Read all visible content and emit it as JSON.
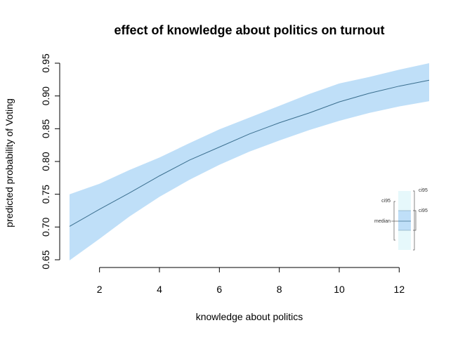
{
  "chart_data": {
    "type": "area",
    "title": "effect of knowledge about politics on turnout",
    "xlabel": "knowledge about politics",
    "ylabel": "predicted probability of Voting",
    "xlim": [
      1,
      13
    ],
    "ylim": [
      0.65,
      0.95
    ],
    "x_ticks": [
      "2",
      "4",
      "6",
      "8",
      "10",
      "12"
    ],
    "y_ticks": [
      "0.65",
      "0.70",
      "0.75",
      "0.80",
      "0.85",
      "0.90",
      "0.95"
    ],
    "x": [
      1,
      2,
      3,
      4,
      5,
      6,
      7,
      8,
      9,
      10,
      11,
      12,
      13
    ],
    "median": [
      0.701,
      0.727,
      0.752,
      0.778,
      0.802,
      0.822,
      0.842,
      0.859,
      0.874,
      0.891,
      0.904,
      0.915,
      0.924
    ],
    "ci95_lower": [
      0.649,
      0.682,
      0.716,
      0.746,
      0.772,
      0.795,
      0.815,
      0.832,
      0.848,
      0.862,
      0.874,
      0.884,
      0.892
    ],
    "ci95_upper": [
      0.75,
      0.766,
      0.787,
      0.806,
      0.828,
      0.849,
      0.867,
      0.885,
      0.903,
      0.919,
      0.929,
      0.94,
      0.95
    ],
    "grid": false,
    "legend_position": "bottom-right",
    "legend": {
      "ci_outer_label": "ci95",
      "ci_inner_label": "ci95",
      "ci_left_label": "ci95",
      "median_label": "median"
    },
    "colors": {
      "band": "#bfdff8",
      "line": "#3b6f8f",
      "legend_outer": "#e6f8fb",
      "legend_inner": "#bfdff8"
    }
  }
}
